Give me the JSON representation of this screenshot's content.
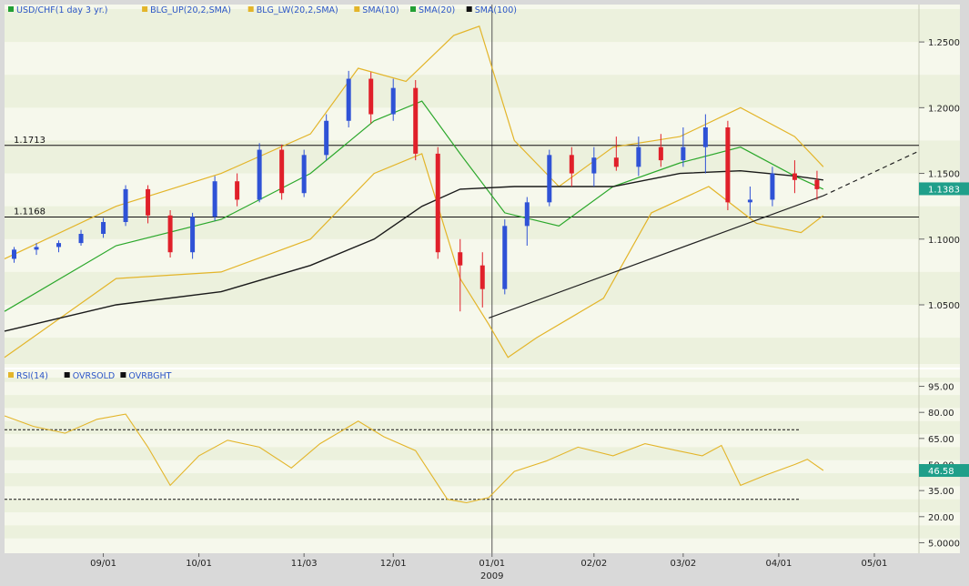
{
  "colors": {
    "bg_outer": "#d9d9d9",
    "band_light": "#f6f8ec",
    "band_dark": "#ecf1dd",
    "up_candle": "#2f52d6",
    "down_candle": "#e0202a",
    "bollinger": "#e3b52a",
    "sma20": "#2ca82c",
    "sma100": "#1a1a1a",
    "rsi": "#e3b52a",
    "price_tag": "#1f9f8a"
  },
  "main_legend": [
    {
      "label": "USD/CHF(1 day  3 yr.)",
      "color": "#22a034"
    },
    {
      "label": "BLG_UP(20,2,SMA)",
      "color": "#e3b52a"
    },
    {
      "label": "BLG_LW(20,2,SMA)",
      "color": "#e3b52a"
    },
    {
      "label": "SMA(10)",
      "color": "#e3b52a"
    },
    {
      "label": "SMA(20)",
      "color": "#22a034"
    },
    {
      "label": "SMA(100)",
      "color": "#111111"
    }
  ],
  "rsi_legend": [
    {
      "label": "RSI(14)",
      "color": "#e3b52a"
    },
    {
      "label": "OVRSOLD",
      "color": "#111111"
    },
    {
      "label": "OVRBGHT",
      "color": "#111111"
    }
  ],
  "main_axis_labels": [
    "1.2500",
    "1.2000",
    "1.1500",
    "1.1000",
    "1.0500"
  ],
  "rsi_axis_labels": [
    "95.00",
    "80.00",
    "65.00",
    "50.00",
    "35.00",
    "20.00",
    "5.0000"
  ],
  "x_axis_labels": [
    "09/01",
    "10/01",
    "11/03",
    "12/01",
    "01/01",
    "02/02",
    "03/02",
    "04/01",
    "05/01"
  ],
  "x_axis_year": "2009",
  "horizontal_levels": [
    {
      "label": "1.1713",
      "value": 1.1713
    },
    {
      "label": "1.1168",
      "value": 1.1168
    }
  ],
  "price_tag": "1.1383",
  "rsi_tag": "46.58",
  "chart_data": [
    {
      "type": "candlestick",
      "title": "USD/CHF(1 day  3 yr.)",
      "ylim": [
        1.005,
        1.275
      ],
      "x_range": [
        "2008-08-01",
        "2009-05-15"
      ],
      "last_price": 1.1383,
      "candles_sampled": [
        {
          "date": "2008-08-04",
          "open": 1.085,
          "high": 1.094,
          "low": 1.082,
          "close": 1.092
        },
        {
          "date": "2008-08-11",
          "open": 1.092,
          "high": 1.097,
          "low": 1.088,
          "close": 1.094
        },
        {
          "date": "2008-08-18",
          "open": 1.094,
          "high": 1.099,
          "low": 1.09,
          "close": 1.097
        },
        {
          "date": "2008-08-25",
          "open": 1.097,
          "high": 1.107,
          "low": 1.095,
          "close": 1.104
        },
        {
          "date": "2008-09-01",
          "open": 1.104,
          "high": 1.116,
          "low": 1.101,
          "close": 1.113
        },
        {
          "date": "2008-09-08",
          "open": 1.113,
          "high": 1.141,
          "low": 1.11,
          "close": 1.138
        },
        {
          "date": "2008-09-15",
          "open": 1.138,
          "high": 1.141,
          "low": 1.112,
          "close": 1.118
        },
        {
          "date": "2008-09-22",
          "open": 1.118,
          "high": 1.122,
          "low": 1.086,
          "close": 1.09
        },
        {
          "date": "2008-09-29",
          "open": 1.09,
          "high": 1.12,
          "low": 1.085,
          "close": 1.117
        },
        {
          "date": "2008-10-06",
          "open": 1.117,
          "high": 1.148,
          "low": 1.114,
          "close": 1.144
        },
        {
          "date": "2008-10-13",
          "open": 1.144,
          "high": 1.15,
          "low": 1.125,
          "close": 1.13
        },
        {
          "date": "2008-10-20",
          "open": 1.13,
          "high": 1.173,
          "low": 1.128,
          "close": 1.168
        },
        {
          "date": "2008-10-27",
          "open": 1.168,
          "high": 1.172,
          "low": 1.13,
          "close": 1.135
        },
        {
          "date": "2008-11-03",
          "open": 1.135,
          "high": 1.168,
          "low": 1.132,
          "close": 1.164
        },
        {
          "date": "2008-11-10",
          "open": 1.164,
          "high": 1.195,
          "low": 1.16,
          "close": 1.19
        },
        {
          "date": "2008-11-17",
          "open": 1.19,
          "high": 1.228,
          "low": 1.185,
          "close": 1.222
        },
        {
          "date": "2008-11-24",
          "open": 1.222,
          "high": 1.227,
          "low": 1.188,
          "close": 1.195
        },
        {
          "date": "2008-12-01",
          "open": 1.195,
          "high": 1.222,
          "low": 1.19,
          "close": 1.215
        },
        {
          "date": "2008-12-08",
          "open": 1.215,
          "high": 1.221,
          "low": 1.16,
          "close": 1.165
        },
        {
          "date": "2008-12-15",
          "open": 1.165,
          "high": 1.17,
          "low": 1.085,
          "close": 1.09
        },
        {
          "date": "2008-12-22",
          "open": 1.09,
          "high": 1.1,
          "low": 1.045,
          "close": 1.08
        },
        {
          "date": "2008-12-29",
          "open": 1.08,
          "high": 1.09,
          "low": 1.048,
          "close": 1.062
        },
        {
          "date": "2009-01-05",
          "open": 1.062,
          "high": 1.115,
          "low": 1.058,
          "close": 1.11
        },
        {
          "date": "2009-01-12",
          "open": 1.11,
          "high": 1.132,
          "low": 1.095,
          "close": 1.128
        },
        {
          "date": "2009-01-19",
          "open": 1.128,
          "high": 1.168,
          "low": 1.125,
          "close": 1.164
        },
        {
          "date": "2009-01-26",
          "open": 1.164,
          "high": 1.17,
          "low": 1.14,
          "close": 1.15
        },
        {
          "date": "2009-02-02",
          "open": 1.15,
          "high": 1.17,
          "low": 1.14,
          "close": 1.162
        },
        {
          "date": "2009-02-09",
          "open": 1.162,
          "high": 1.178,
          "low": 1.152,
          "close": 1.155
        },
        {
          "date": "2009-02-16",
          "open": 1.155,
          "high": 1.178,
          "low": 1.148,
          "close": 1.17
        },
        {
          "date": "2009-02-23",
          "open": 1.17,
          "high": 1.18,
          "low": 1.155,
          "close": 1.16
        },
        {
          "date": "2009-03-02",
          "open": 1.16,
          "high": 1.185,
          "low": 1.155,
          "close": 1.17
        },
        {
          "date": "2009-03-09",
          "open": 1.17,
          "high": 1.195,
          "low": 1.15,
          "close": 1.185
        },
        {
          "date": "2009-03-16",
          "open": 1.185,
          "high": 1.19,
          "low": 1.122,
          "close": 1.128
        },
        {
          "date": "2009-03-23",
          "open": 1.128,
          "high": 1.14,
          "low": 1.118,
          "close": 1.13
        },
        {
          "date": "2009-03-30",
          "open": 1.13,
          "high": 1.155,
          "low": 1.125,
          "close": 1.15
        },
        {
          "date": "2009-04-06",
          "open": 1.15,
          "high": 1.16,
          "low": 1.135,
          "close": 1.145
        },
        {
          "date": "2009-04-13",
          "open": 1.145,
          "high": 1.152,
          "low": 1.13,
          "close": 1.138
        }
      ],
      "bollinger_upper_sampled": [
        {
          "date": "2008-08-01",
          "value": 1.085
        },
        {
          "date": "2008-09-05",
          "value": 1.125
        },
        {
          "date": "2008-10-08",
          "value": 1.15
        },
        {
          "date": "2008-11-05",
          "value": 1.18
        },
        {
          "date": "2008-11-20",
          "value": 1.23
        },
        {
          "date": "2008-12-05",
          "value": 1.22
        },
        {
          "date": "2008-12-20",
          "value": 1.255
        },
        {
          "date": "2008-12-28",
          "value": 1.262
        },
        {
          "date": "2009-01-08",
          "value": 1.175
        },
        {
          "date": "2009-01-22",
          "value": 1.14
        },
        {
          "date": "2009-02-08",
          "value": 1.17
        },
        {
          "date": "2009-03-01",
          "value": 1.178
        },
        {
          "date": "2009-03-20",
          "value": 1.2
        },
        {
          "date": "2009-04-06",
          "value": 1.178
        },
        {
          "date": "2009-04-15",
          "value": 1.155
        }
      ],
      "bollinger_lower_sampled": [
        {
          "date": "2008-08-01",
          "value": 1.01
        },
        {
          "date": "2008-09-05",
          "value": 1.07
        },
        {
          "date": "2008-10-08",
          "value": 1.075
        },
        {
          "date": "2008-11-05",
          "value": 1.1
        },
        {
          "date": "2008-11-25",
          "value": 1.15
        },
        {
          "date": "2008-12-10",
          "value": 1.165
        },
        {
          "date": "2008-12-22",
          "value": 1.07
        },
        {
          "date": "2008-12-31",
          "value": 1.035
        },
        {
          "date": "2009-01-06",
          "value": 1.01
        },
        {
          "date": "2009-01-15",
          "value": 1.025
        },
        {
          "date": "2009-02-05",
          "value": 1.055
        },
        {
          "date": "2009-02-20",
          "value": 1.12
        },
        {
          "date": "2009-03-10",
          "value": 1.14
        },
        {
          "date": "2009-03-25",
          "value": 1.112
        },
        {
          "date": "2009-04-08",
          "value": 1.105
        },
        {
          "date": "2009-04-15",
          "value": 1.118
        }
      ],
      "sma20_sampled": [
        {
          "date": "2008-08-01",
          "value": 1.045
        },
        {
          "date": "2008-09-05",
          "value": 1.095
        },
        {
          "date": "2008-10-08",
          "value": 1.115
        },
        {
          "date": "2008-11-05",
          "value": 1.15
        },
        {
          "date": "2008-11-25",
          "value": 1.19
        },
        {
          "date": "2008-12-10",
          "value": 1.205
        },
        {
          "date": "2008-12-22",
          "value": 1.165
        },
        {
          "date": "2009-01-05",
          "value": 1.12
        },
        {
          "date": "2009-01-22",
          "value": 1.11
        },
        {
          "date": "2009-02-08",
          "value": 1.14
        },
        {
          "date": "2009-03-01",
          "value": 1.158
        },
        {
          "date": "2009-03-20",
          "value": 1.17
        },
        {
          "date": "2009-04-06",
          "value": 1.148
        },
        {
          "date": "2009-04-15",
          "value": 1.138
        }
      ],
      "sma100_sampled": [
        {
          "date": "2008-08-01",
          "value": 1.03
        },
        {
          "date": "2008-09-05",
          "value": 1.05
        },
        {
          "date": "2008-10-08",
          "value": 1.06
        },
        {
          "date": "2008-11-05",
          "value": 1.08
        },
        {
          "date": "2008-11-25",
          "value": 1.1
        },
        {
          "date": "2008-12-10",
          "value": 1.125
        },
        {
          "date": "2008-12-22",
          "value": 1.138
        },
        {
          "date": "2009-01-08",
          "value": 1.14
        },
        {
          "date": "2009-02-08",
          "value": 1.14
        },
        {
          "date": "2009-03-01",
          "value": 1.15
        },
        {
          "date": "2009-03-20",
          "value": 1.152
        },
        {
          "date": "2009-04-06",
          "value": 1.148
        },
        {
          "date": "2009-04-15",
          "value": 1.145
        }
      ],
      "trendline": [
        {
          "date": "2008-12-31",
          "value": 1.04
        },
        {
          "date": "2009-04-15",
          "value": 1.133
        },
        {
          "date": "2009-05-15",
          "value": 1.167,
          "dashed": true
        }
      ]
    },
    {
      "type": "line",
      "title": "RSI(14)",
      "ylim": [
        0,
        100
      ],
      "overbought": 70,
      "oversold": 30,
      "last": 46.58,
      "rsi_sampled": [
        {
          "date": "2008-08-01",
          "value": 78
        },
        {
          "date": "2008-08-10",
          "value": 72
        },
        {
          "date": "2008-08-20",
          "value": 68
        },
        {
          "date": "2008-08-30",
          "value": 76
        },
        {
          "date": "2008-09-08",
          "value": 79
        },
        {
          "date": "2008-09-15",
          "value": 60
        },
        {
          "date": "2008-09-22",
          "value": 38
        },
        {
          "date": "2008-10-01",
          "value": 55
        },
        {
          "date": "2008-10-10",
          "value": 64
        },
        {
          "date": "2008-10-20",
          "value": 60
        },
        {
          "date": "2008-10-30",
          "value": 48
        },
        {
          "date": "2008-11-08",
          "value": 62
        },
        {
          "date": "2008-11-20",
          "value": 75
        },
        {
          "date": "2008-11-28",
          "value": 66
        },
        {
          "date": "2008-12-08",
          "value": 58
        },
        {
          "date": "2008-12-18",
          "value": 30
        },
        {
          "date": "2008-12-24",
          "value": 28
        },
        {
          "date": "2008-12-31",
          "value": 31
        },
        {
          "date": "2009-01-08",
          "value": 46
        },
        {
          "date": "2009-01-18",
          "value": 52
        },
        {
          "date": "2009-01-28",
          "value": 60
        },
        {
          "date": "2009-02-08",
          "value": 55
        },
        {
          "date": "2009-02-18",
          "value": 62
        },
        {
          "date": "2009-02-28",
          "value": 58
        },
        {
          "date": "2009-03-08",
          "value": 55
        },
        {
          "date": "2009-03-14",
          "value": 61
        },
        {
          "date": "2009-03-20",
          "value": 38
        },
        {
          "date": "2009-03-28",
          "value": 44
        },
        {
          "date": "2009-04-06",
          "value": 50
        },
        {
          "date": "2009-04-10",
          "value": 53
        },
        {
          "date": "2009-04-15",
          "value": 46.58
        }
      ]
    }
  ]
}
